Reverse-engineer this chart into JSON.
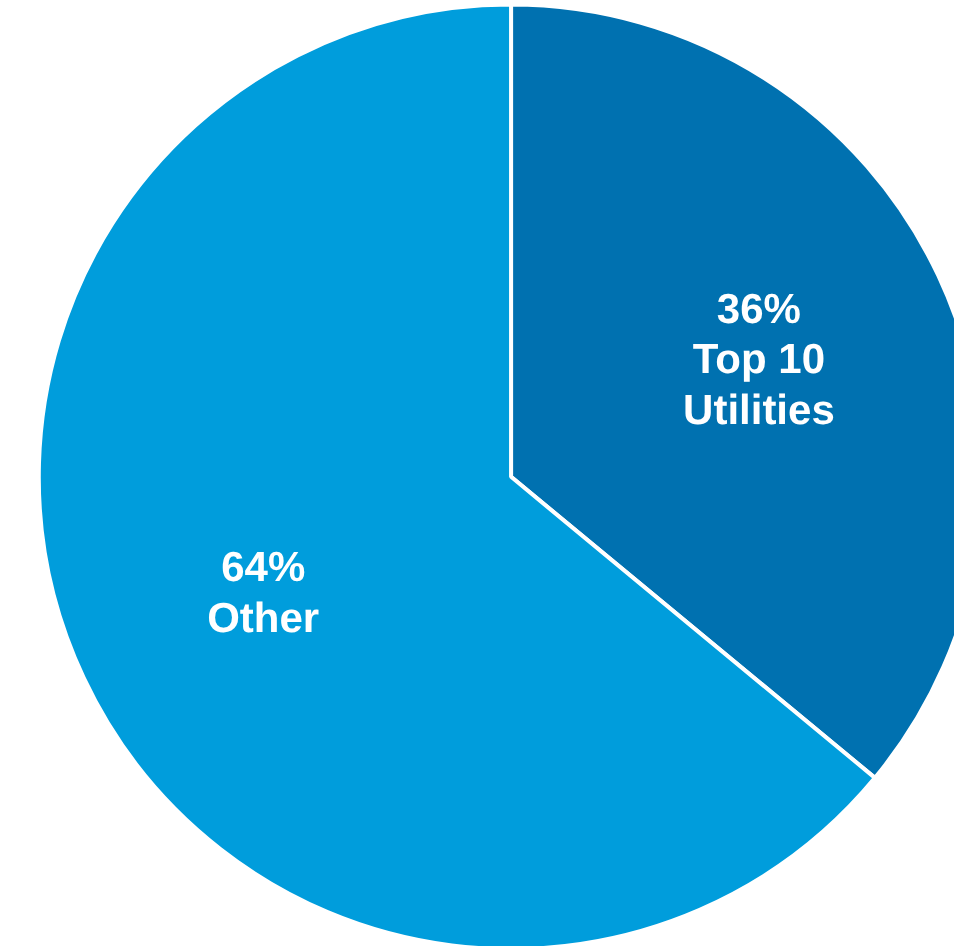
{
  "chart_data": {
    "type": "pie",
    "categories": [
      "Top 10 Utilities",
      "Other"
    ],
    "values": [
      36,
      64
    ],
    "colors": [
      "#0071b0",
      "#009ddc"
    ],
    "value_labels": [
      "36%",
      "64%"
    ]
  }
}
